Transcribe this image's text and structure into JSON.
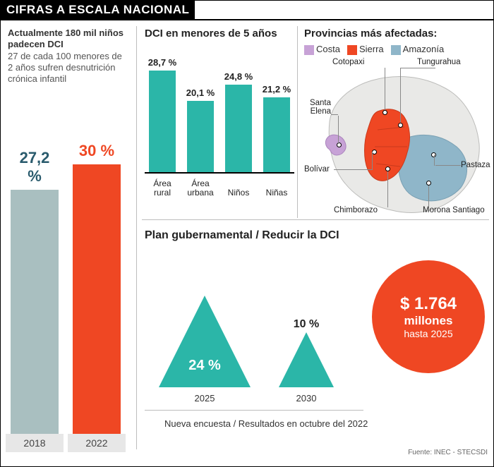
{
  "header": {
    "title": "CIFRAS A ESCALA NACIONAL"
  },
  "colors": {
    "teal": "#2bb6a8",
    "orange": "#ef4723",
    "grayBar": "#a9bfc0",
    "grayBarDark": "#8aa1a2",
    "costa": "#c7a2d6",
    "sierra": "#ef4723",
    "amazonia": "#8fb6c9",
    "mapFill": "#e9e9e7",
    "mapStroke": "#bcbcba"
  },
  "left": {
    "headline_bold": "Actualmente  180 mil niños padecen DCI",
    "subline": "27 de cada 100 menores de 2 años sufren desnutrición crónica infantil",
    "bars": [
      {
        "year": "2018",
        "value": 27.2,
        "label": "27,2 %",
        "color": "#a9bfc0",
        "label_color": "#2a5b6d"
      },
      {
        "year": "2022",
        "value": 30.0,
        "label": "30 %",
        "color": "#ef4723",
        "label_color": "#ef4723"
      }
    ],
    "ymax": 33
  },
  "dci5": {
    "title": "DCI en menores de 5 años",
    "ymax": 32,
    "bars": [
      {
        "cat": "Área rural",
        "value": 28.7,
        "label": "28,7 %"
      },
      {
        "cat": "Área urbana",
        "value": 20.1,
        "label": "20,1 %"
      },
      {
        "cat": "Niños",
        "value": 24.8,
        "label": "24,8 %"
      },
      {
        "cat": "Niñas",
        "value": 21.2,
        "label": "21,2 %"
      }
    ],
    "bar_color": "#2bb6a8"
  },
  "map": {
    "title": "Provincias más afectadas:",
    "legend": [
      {
        "label": "Costa",
        "color": "#c7a2d6"
      },
      {
        "label": "Sierra",
        "color": "#ef4723"
      },
      {
        "label": "Amazonía",
        "color": "#8fb6c9"
      }
    ],
    "provinces": [
      {
        "name": "Cotopaxi"
      },
      {
        "name": "Tungurahua"
      },
      {
        "name": "Santa Elena"
      },
      {
        "name": "Bolívar"
      },
      {
        "name": "Pastaza"
      },
      {
        "name": "Chimborazo"
      },
      {
        "name": "Morona Santiago"
      }
    ]
  },
  "plan": {
    "title": "Plan gubernamental / Reducir la DCI",
    "triangles": [
      {
        "year": "2025",
        "value": 24,
        "label": "24 %",
        "size": 130,
        "color": "#2bb6a8"
      },
      {
        "year": "2030",
        "value": 10,
        "label": "10 %",
        "size": 78,
        "color": "#2bb6a8"
      }
    ],
    "circle": {
      "amount": "$ 1.764",
      "unit": "millones",
      "until": "hasta 2025",
      "color": "#ef4723"
    },
    "survey_note": "Nueva encuesta / Resultados en octubre del 2022",
    "divider_color": "#bdbdbd"
  },
  "source": "Fuente: INEC - STECSDI"
}
